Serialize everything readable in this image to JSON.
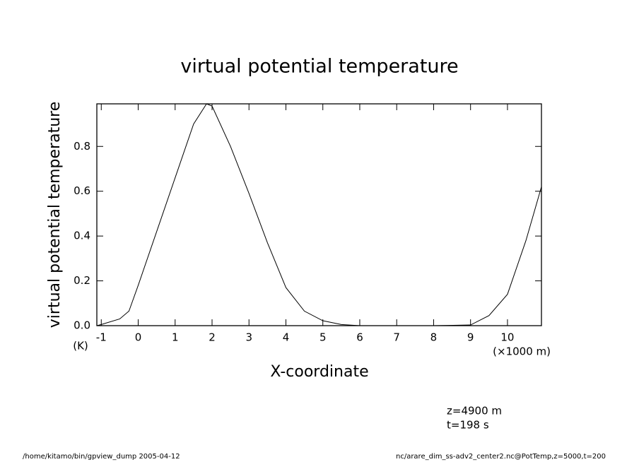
{
  "chart_data": {
    "type": "line",
    "title": "virtual potential temperature",
    "ylabel": "virtual potential temperature",
    "yunit": "(K)",
    "xlabel": "X-coordinate",
    "xunit": "(×1000 m)",
    "annotations": [
      "z=4900 m",
      "t=198 s"
    ],
    "footer_left": "/home/kitamo/bin/gpview_dump  2005-04-12",
    "footer_right": "nc/arare_dim_ss-adv2_center2.nc@PotTemp,z=5000,t=200",
    "x": [
      -1.12,
      -1,
      -0.5,
      -0.25,
      0,
      0.5,
      1,
      1.5,
      1.85,
      2,
      2.5,
      3,
      3.5,
      4,
      4.5,
      5,
      5.5,
      6,
      7,
      8,
      9,
      9.5,
      10,
      10.5,
      10.92
    ],
    "series": [
      {
        "color": "#000000",
        "values": [
          0.0,
          0.005,
          0.03,
          0.065,
          0.18,
          0.42,
          0.66,
          0.9,
          0.99,
          0.98,
          0.8,
          0.59,
          0.37,
          0.17,
          0.065,
          0.022,
          0.005,
          0.0,
          0.0,
          0.0,
          0.003,
          0.045,
          0.14,
          0.38,
          0.62
        ]
      }
    ],
    "xlim": [
      -1.12,
      10.92
    ],
    "ylim": [
      0,
      0.99
    ],
    "xticks": [
      -1,
      0,
      1,
      2,
      3,
      4,
      5,
      6,
      7,
      8,
      9,
      10
    ],
    "yticks": [
      {
        "value": 0,
        "label": "0.0"
      },
      0.2,
      0.4,
      0.6,
      0.8
    ]
  }
}
